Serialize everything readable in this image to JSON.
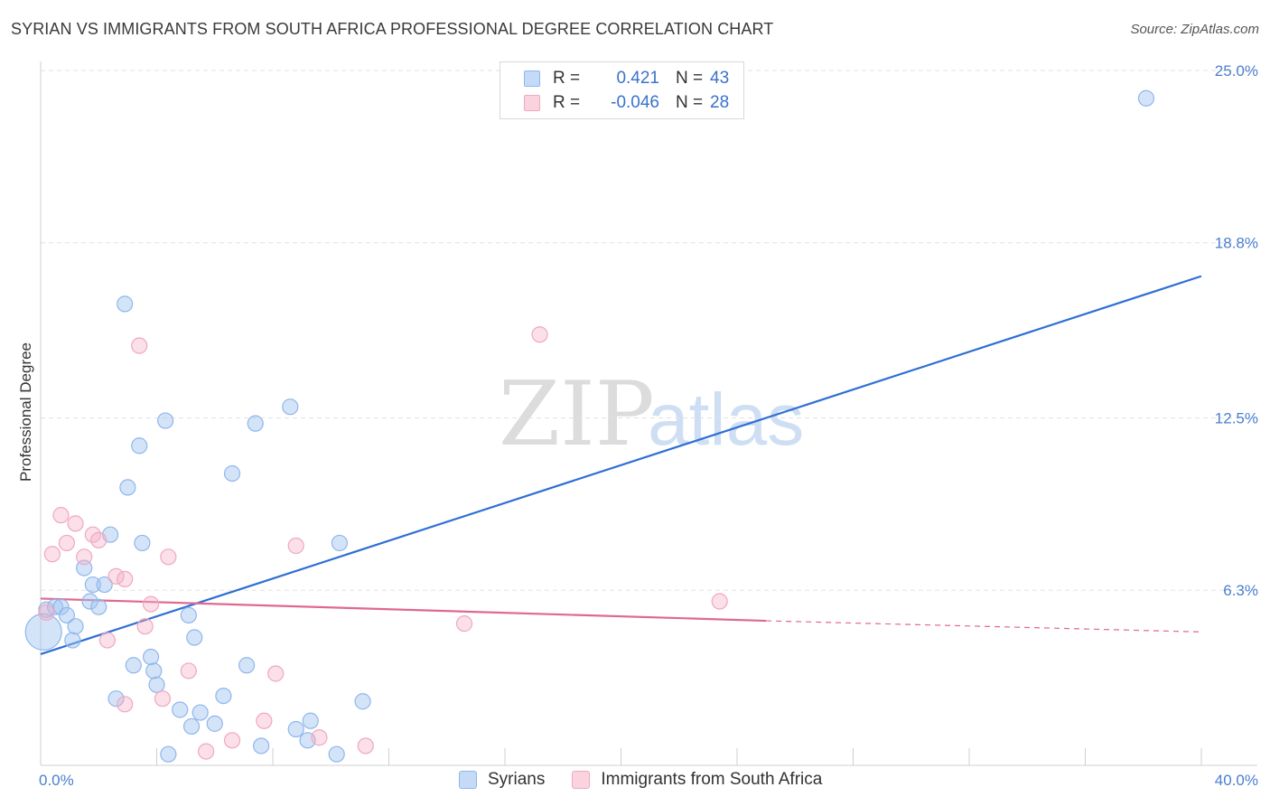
{
  "title": "SYRIAN VS IMMIGRANTS FROM SOUTH AFRICA PROFESSIONAL DEGREE CORRELATION CHART",
  "source": "Source: ZipAtlas.com",
  "watermark": {
    "zip": "ZIP",
    "atlas": "atlas"
  },
  "legend": {
    "rows": [
      {
        "r_label": "R =",
        "r_value": "0.421",
        "n_label": "N =",
        "n_value": "43",
        "color": "#8fb6ec"
      },
      {
        "r_label": "R =",
        "r_value": "-0.046",
        "n_label": "N =",
        "n_value": "28",
        "color": "#f0a8bf"
      }
    ]
  },
  "bottom_legend": {
    "series1": "Syrians",
    "series2": "Immigrants from South Africa"
  },
  "chart_data": {
    "type": "scatter",
    "title": "SYRIAN VS IMMIGRANTS FROM SOUTH AFRICA PROFESSIONAL DEGREE CORRELATION CHART",
    "ylabel": "Professional Degree",
    "xlabel": "",
    "xlim": [
      0,
      40
    ],
    "ylim": [
      0,
      25
    ],
    "x_tick_labels": [
      "0.0%",
      "40.0%"
    ],
    "y_ticks": [
      6.3,
      12.5,
      18.8,
      25.0
    ],
    "y_tick_labels": [
      "6.3%",
      "12.5%",
      "18.8%",
      "25.0%"
    ],
    "grid": "horizontal dashed",
    "series": [
      {
        "name": "Syrians",
        "color": "#8fb6ec",
        "line_color": "#2e6fd4",
        "trend": {
          "x": [
            0,
            40
          ],
          "y": [
            4.0,
            17.6
          ]
        },
        "points": [
          [
            0.2,
            5.6
          ],
          [
            0.5,
            5.7
          ],
          [
            0.7,
            5.7
          ],
          [
            0.9,
            5.4
          ],
          [
            1.1,
            4.5
          ],
          [
            1.2,
            5.0
          ],
          [
            1.5,
            7.1
          ],
          [
            1.7,
            5.9
          ],
          [
            1.8,
            6.5
          ],
          [
            2.0,
            5.7
          ],
          [
            2.2,
            6.5
          ],
          [
            2.4,
            8.3
          ],
          [
            2.6,
            2.4
          ],
          [
            2.9,
            16.6
          ],
          [
            3.0,
            10.0
          ],
          [
            3.2,
            3.6
          ],
          [
            3.4,
            11.5
          ],
          [
            3.5,
            8.0
          ],
          [
            3.8,
            3.9
          ],
          [
            3.9,
            3.4
          ],
          [
            4.0,
            2.9
          ],
          [
            4.3,
            12.4
          ],
          [
            4.4,
            0.4
          ],
          [
            4.8,
            2.0
          ],
          [
            5.1,
            5.4
          ],
          [
            5.2,
            1.4
          ],
          [
            5.3,
            4.6
          ],
          [
            5.5,
            1.9
          ],
          [
            6.0,
            1.5
          ],
          [
            6.3,
            2.5
          ],
          [
            6.6,
            10.5
          ],
          [
            7.1,
            3.6
          ],
          [
            7.6,
            0.7
          ],
          [
            7.4,
            12.3
          ],
          [
            8.6,
            12.9
          ],
          [
            8.8,
            1.3
          ],
          [
            9.2,
            0.9
          ],
          [
            9.3,
            1.6
          ],
          [
            10.2,
            0.4
          ],
          [
            10.3,
            8.0
          ],
          [
            11.1,
            2.3
          ],
          [
            38.1,
            24.0
          ],
          [
            0.1,
            4.8
          ]
        ]
      },
      {
        "name": "Immigrants from South Africa",
        "color": "#f0a8bf",
        "line_color": "#e0688f",
        "trend": {
          "x": [
            0,
            25
          ],
          "y": [
            6.0,
            5.2
          ]
        },
        "trend_dashed": {
          "x": [
            25,
            40
          ],
          "y": [
            5.2,
            4.8
          ]
        },
        "points": [
          [
            0.2,
            5.5
          ],
          [
            0.4,
            7.6
          ],
          [
            0.7,
            9.0
          ],
          [
            0.9,
            8.0
          ],
          [
            1.2,
            8.7
          ],
          [
            1.5,
            7.5
          ],
          [
            1.8,
            8.3
          ],
          [
            2.0,
            8.1
          ],
          [
            2.3,
            4.5
          ],
          [
            2.6,
            6.8
          ],
          [
            2.9,
            6.7
          ],
          [
            2.9,
            2.2
          ],
          [
            3.4,
            15.1
          ],
          [
            3.6,
            5.0
          ],
          [
            3.8,
            5.8
          ],
          [
            4.2,
            2.4
          ],
          [
            4.4,
            7.5
          ],
          [
            5.1,
            3.4
          ],
          [
            5.7,
            0.5
          ],
          [
            6.6,
            0.9
          ],
          [
            7.7,
            1.6
          ],
          [
            8.1,
            3.3
          ],
          [
            8.8,
            7.9
          ],
          [
            9.6,
            1.0
          ],
          [
            11.2,
            0.7
          ],
          [
            14.6,
            5.1
          ],
          [
            17.2,
            15.5
          ],
          [
            23.4,
            5.9
          ]
        ]
      }
    ]
  }
}
